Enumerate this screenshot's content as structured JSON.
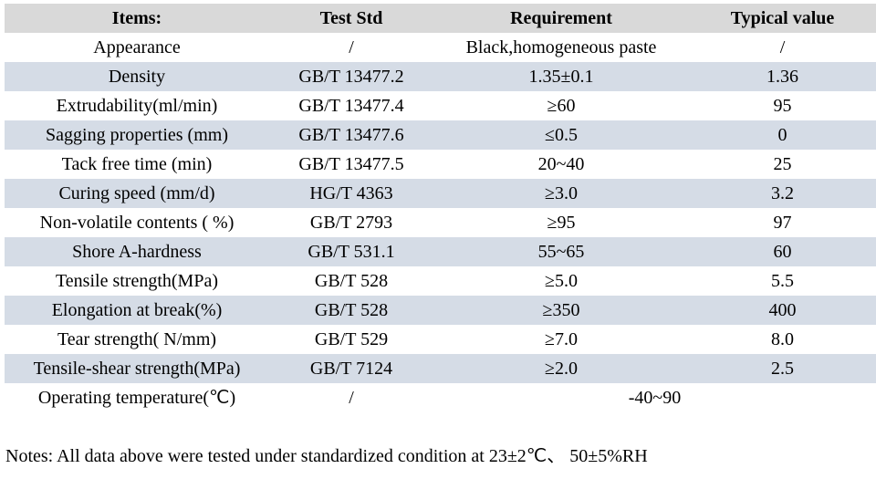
{
  "table": {
    "headers": [
      "Items:",
      "Test Std",
      "Requirement",
      "Typical value"
    ],
    "rows": [
      {
        "item": "Appearance",
        "std": "/",
        "req": "Black,homogeneous paste",
        "typ": "/"
      },
      {
        "item": "Density",
        "std": "GB/T 13477.2",
        "req": "1.35±0.1",
        "typ": "1.36"
      },
      {
        "item": "Extrudability(ml/min)",
        "std": "GB/T 13477.4",
        "req": "≥60",
        "typ": "95"
      },
      {
        "item": "Sagging properties (mm)",
        "std": "GB/T 13477.6",
        "req": "≤0.5",
        "typ": "0"
      },
      {
        "item": "Tack free time (min)",
        "std": "GB/T 13477.5",
        "req": "20~40",
        "typ": "25"
      },
      {
        "item": "Curing speed (mm/d)",
        "std": "HG/T 4363",
        "req": "≥3.0",
        "typ": "3.2"
      },
      {
        "item": "Non-volatile contents ( %)",
        "std": "GB/T 2793",
        "req": "≥95",
        "typ": "97"
      },
      {
        "item": "Shore A-hardness",
        "std": "GB/T 531.1",
        "req": "55~65",
        "typ": "60"
      },
      {
        "item": "Tensile strength(MPa)",
        "std": "GB/T 528",
        "req": "≥5.0",
        "typ": "5.5"
      },
      {
        "item": "Elongation at break(%)",
        "std": "GB/T 528",
        "req": "≥350",
        "typ": "400"
      },
      {
        "item": "Tear strength( N/mm)",
        "std": "GB/T 529",
        "req": "≥7.0",
        "typ": "8.0"
      },
      {
        "item": "Tensile-shear strength(MPa)",
        "std": "GB/T 7124",
        "req": "≥2.0",
        "typ": "2.5"
      },
      {
        "item": "Operating temperature(℃)",
        "std": "/",
        "req": "-40~90",
        "typ": null,
        "merged_requirement": true
      }
    ]
  },
  "notes": "Notes: All data above were tested under standardized condition at 23±2℃、 50±5%RH",
  "colors": {
    "header_bg": "#d9d9d9",
    "alt_row_bg": "#d5dce6",
    "row_bg": "#ffffff",
    "text": "#000000"
  }
}
